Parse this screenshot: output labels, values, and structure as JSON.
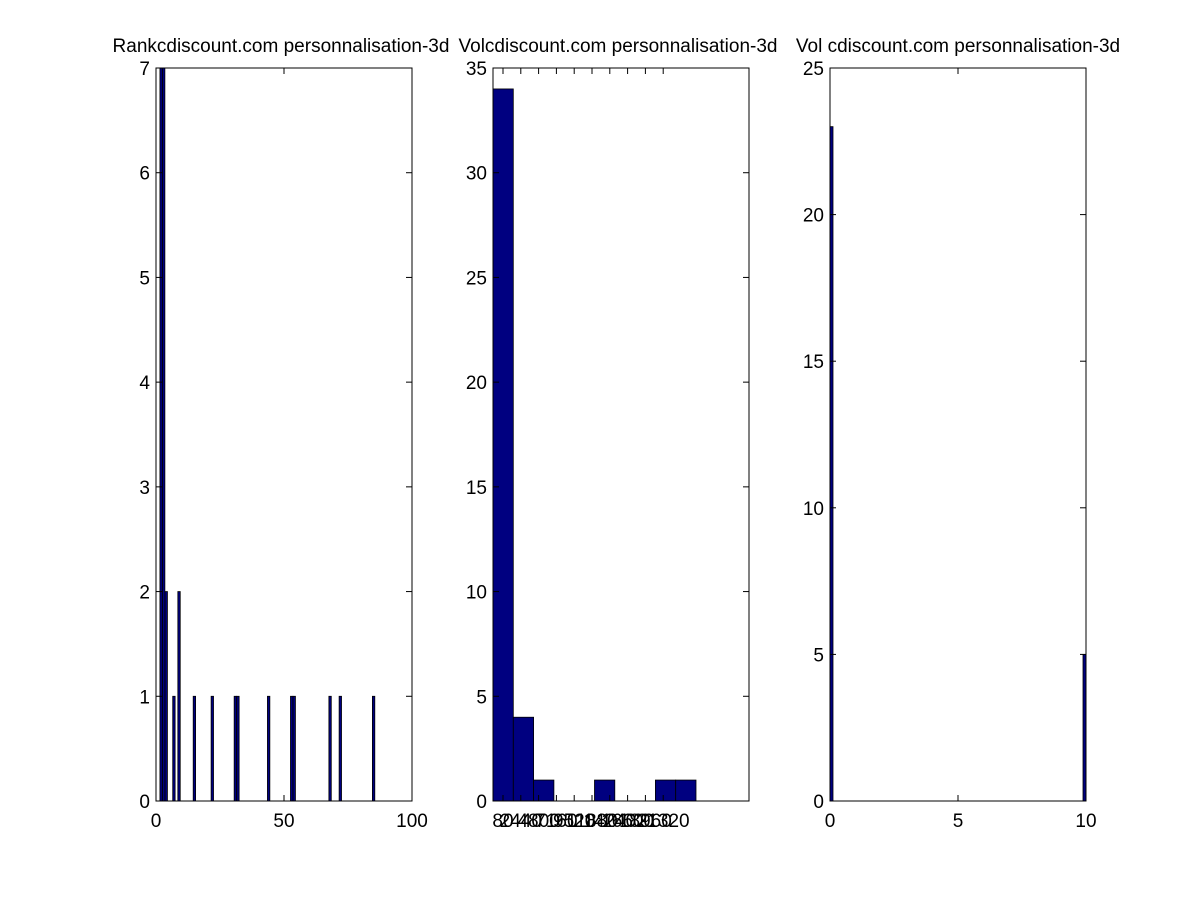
{
  "colors": {
    "bar_fill": "#000080",
    "axis": "#000000",
    "background": "#ffffff"
  },
  "chart_data": [
    {
      "type": "bar",
      "title": "Rankcdiscount.com personnalisation-3d",
      "xlim": [
        0,
        100
      ],
      "ylim": [
        0,
        7
      ],
      "xticks": [
        "0",
        "50",
        "100"
      ],
      "yticks": [
        "0",
        "1",
        "2",
        "3",
        "4",
        "5",
        "6",
        "7"
      ],
      "grid": false,
      "bars": [
        {
          "x": 2,
          "value": 7
        },
        {
          "x": 3,
          "value": 7
        },
        {
          "x": 4,
          "value": 2
        },
        {
          "x": 7,
          "value": 1
        },
        {
          "x": 9,
          "value": 2
        },
        {
          "x": 15,
          "value": 1
        },
        {
          "x": 22,
          "value": 1
        },
        {
          "x": 31,
          "value": 1
        },
        {
          "x": 32,
          "value": 1
        },
        {
          "x": 44,
          "value": 1
        },
        {
          "x": 53,
          "value": 1
        },
        {
          "x": 54,
          "value": 1
        },
        {
          "x": 68,
          "value": 1
        },
        {
          "x": 72,
          "value": 1
        },
        {
          "x": 85,
          "value": 1
        }
      ]
    },
    {
      "type": "bar",
      "title": "Volcdiscount.com personnalisation-3d",
      "xlim": [
        0,
        10
      ],
      "ylim": [
        0,
        35
      ],
      "xticks": [
        "80",
        "2440",
        "4800",
        "7160",
        "9520",
        "11880",
        "14240",
        "16600",
        "18960",
        "21320"
      ],
      "yticks": [
        "0",
        "5",
        "10",
        "15",
        "20",
        "25",
        "30",
        "35"
      ],
      "grid": false,
      "bars": [
        {
          "x": 0,
          "value": 34
        },
        {
          "x": 1,
          "value": 4
        },
        {
          "x": 2,
          "value": 1
        },
        {
          "x": 3,
          "value": 0
        },
        {
          "x": 4,
          "value": 0
        },
        {
          "x": 5,
          "value": 1
        },
        {
          "x": 6,
          "value": 0
        },
        {
          "x": 7,
          "value": 0
        },
        {
          "x": 8,
          "value": 1
        },
        {
          "x": 9,
          "value": 1
        }
      ]
    },
    {
      "type": "bar",
      "title": "Vol cdiscount.com personnalisation-3d",
      "xlim": [
        0,
        10
      ],
      "ylim": [
        0,
        25
      ],
      "xticks": [
        "0",
        "5",
        "10"
      ],
      "yticks": [
        "0",
        "5",
        "10",
        "15",
        "20",
        "25"
      ],
      "grid": false,
      "bars": [
        {
          "x": 0,
          "value": 23
        },
        {
          "x": 10,
          "value": 5
        }
      ]
    }
  ]
}
